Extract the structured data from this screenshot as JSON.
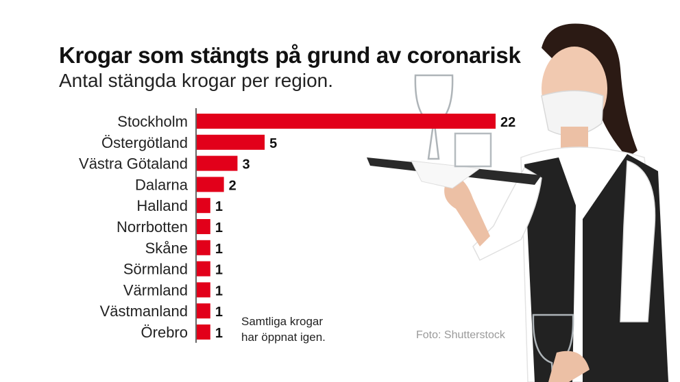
{
  "header": {
    "title": "Krogar som stängts på grund av coronarisk",
    "subtitle": "Antal stängda krogar per region."
  },
  "note": {
    "line1": "Samtliga krogar",
    "line2": "har öppnat igen."
  },
  "credit": "Foto: Shutterstock",
  "photo": {
    "icon": "waitress-with-tray-photo"
  },
  "colors": {
    "bar": "#e2001a",
    "axis": "#333333",
    "label": "#222222"
  },
  "chart_data": {
    "type": "bar",
    "orientation": "horizontal",
    "title": "Krogar som stängts på grund av coronarisk",
    "subtitle": "Antal stängda krogar per region.",
    "xlabel": "",
    "ylabel": "",
    "categories": [
      "Stockholm",
      "Östergötland",
      "Västra Götaland",
      "Dalarna",
      "Halland",
      "Norrbotten",
      "Skåne",
      "Sörmland",
      "Värmland",
      "Västmanland",
      "Örebro"
    ],
    "values": [
      22,
      5,
      3,
      2,
      1,
      1,
      1,
      1,
      1,
      1,
      1
    ],
    "xlim": [
      0,
      22
    ],
    "grid": false,
    "data_labels": true
  }
}
